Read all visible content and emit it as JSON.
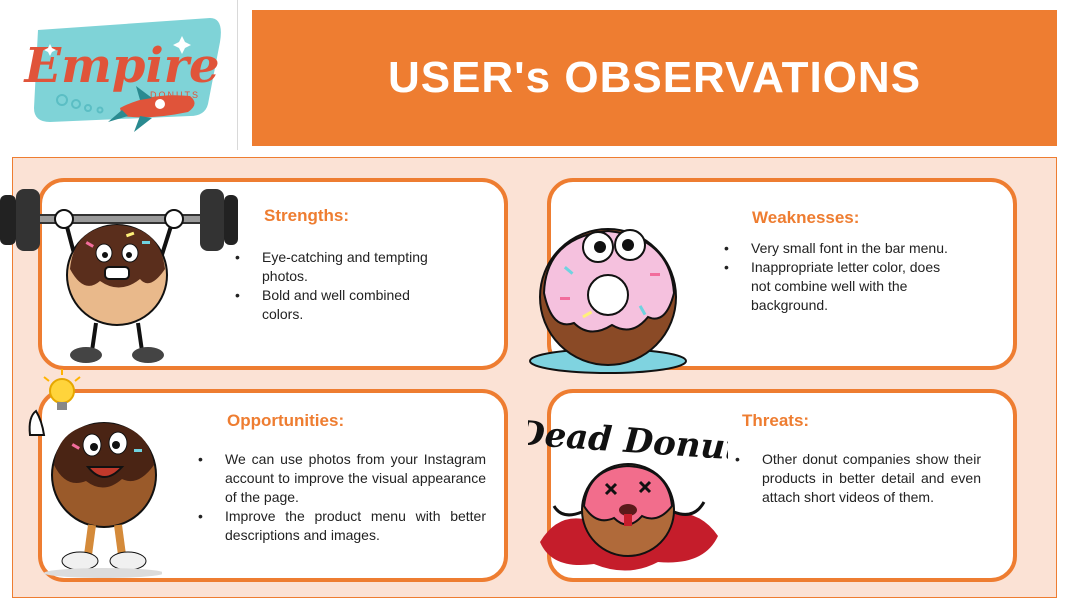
{
  "logo": {
    "name": "Empire",
    "sub": "DONUTS"
  },
  "header": {
    "title": "USER's OBSERVATIONS"
  },
  "cards": {
    "strengths": {
      "title": "Strengths:",
      "items": [
        "Eye-catching and tempting photos.",
        "Bold and well combined colors."
      ]
    },
    "weaknesses": {
      "title": "Weaknesses:",
      "items": [
        "Very small font in the bar menu.",
        "Inappropriate letter color, does not combine well with the background."
      ]
    },
    "opportunities": {
      "title": "Opportunities:",
      "items": [
        "We can use photos from your Instagram account to improve the visual appearance of the page.",
        "Improve the product menu with better descriptions and images."
      ]
    },
    "threats": {
      "title": "Threats:",
      "items": [
        "Other donut companies show their products in better detail and even attach short videos of them."
      ]
    }
  },
  "art": {
    "dead_donut_text": "Dead Donut"
  },
  "colors": {
    "accent": "#ee7d31",
    "panel": "#fbe2d5",
    "logo_teal": "#7fd3d7",
    "logo_red": "#e0543a"
  }
}
